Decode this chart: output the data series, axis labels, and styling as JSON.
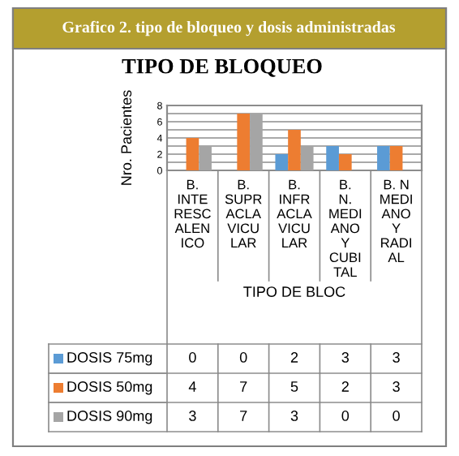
{
  "chart_data": {
    "type": "bar",
    "title": "Grafico 2. tipo de bloqueo y dosis administradas",
    "subtitle": "TIPO DE BLOQUEO",
    "xlabel": "TIPO DE BLOC",
    "ylabel": "Nro. Pacientes",
    "categories": [
      "B. INTERESCALENICO",
      "B. SUPRACLAVICULAR",
      "B. INFRACLAVICULAR",
      "B. N. MEDIANO Y CUBITAL",
      "B. N MEDIANO Y RADIAL"
    ],
    "series": [
      {
        "name": "DOSIS 75mg",
        "color": "#5b9bd5",
        "values": [
          0,
          0,
          2,
          3,
          3
        ]
      },
      {
        "name": "DOSIS 50mg",
        "color": "#ed7d31",
        "values": [
          4,
          7,
          5,
          2,
          3
        ]
      },
      {
        "name": "DOSIS 90mg",
        "color": "#a5a5a5",
        "values": [
          3,
          7,
          3,
          0,
          0
        ]
      }
    ],
    "ylim": [
      0,
      8
    ],
    "yticks": [
      0,
      {
        "value": 1,
        "label": null
      },
      2,
      {
        "value": 3,
        "label": null
      },
      4,
      {
        "value": 5,
        "label": null
      },
      6,
      {
        "value": 7,
        "label": null
      },
      8
    ],
    "grid": "y",
    "data_labels": true,
    "legend": "bottom"
  }
}
